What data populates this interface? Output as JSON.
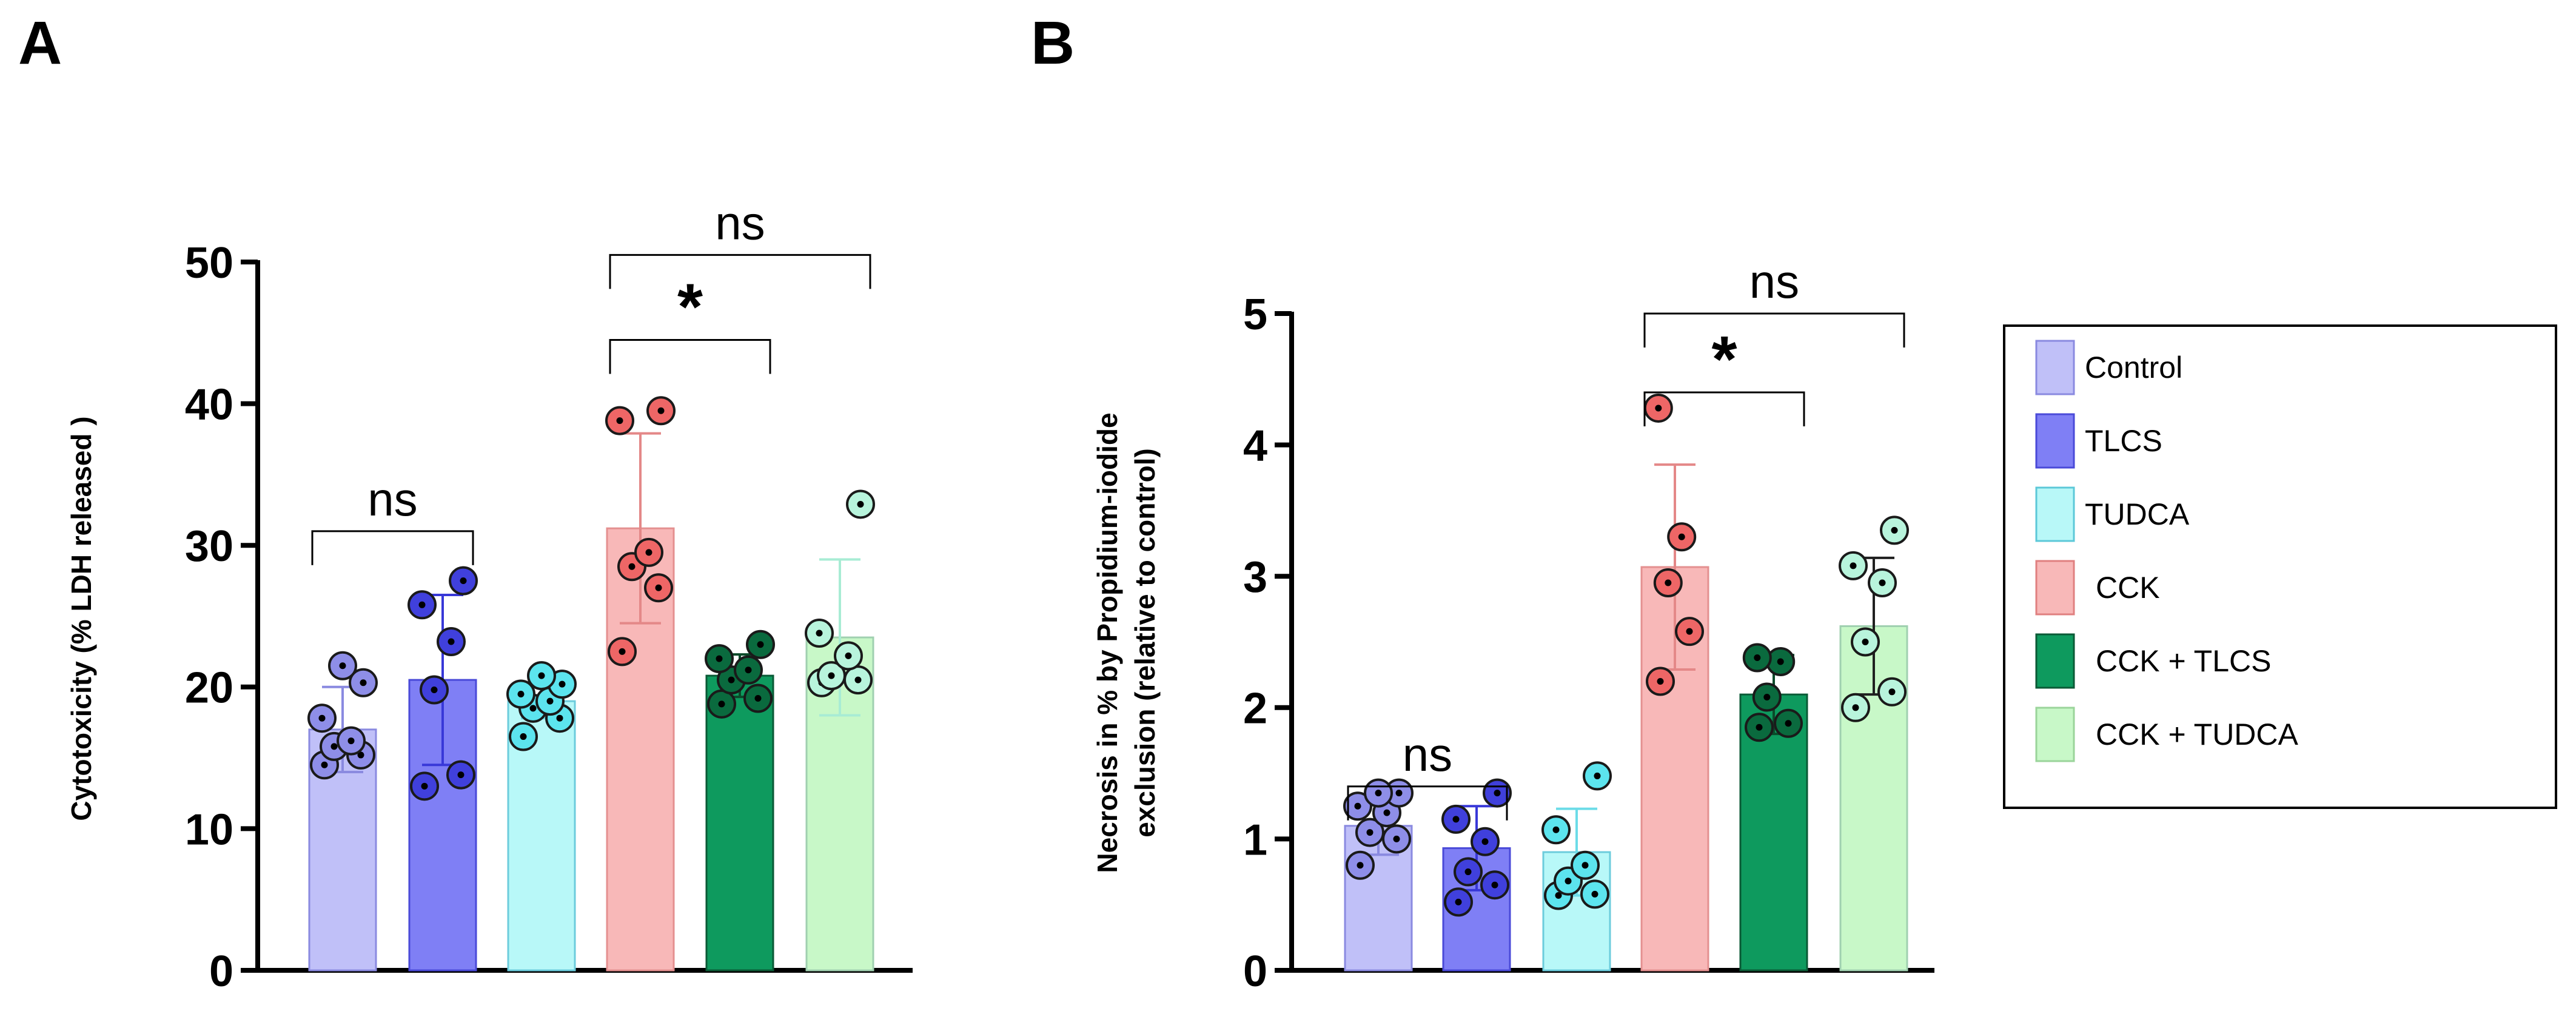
{
  "panels": {
    "a": "A",
    "b": "B"
  },
  "legend": {
    "items": [
      {
        "label": "Control",
        "color": "#C0C0F8",
        "edge": "#8A8AE0"
      },
      {
        "label": "TLCS",
        "color": "#7F7FF5",
        "edge": "#4A4AD8"
      },
      {
        "label": "TUDCA",
        "color": "#B8F8F8",
        "edge": "#5CC8D8"
      },
      {
        "label": "CCK",
        "color": "#F8B8B8",
        "edge": "#E08080"
      },
      {
        "label": "CCK + TLCS",
        "color": "#0E9A5E",
        "edge": "#0A5A36"
      },
      {
        "label": "CCK + TUDCA",
        "color": "#C8F8C8",
        "edge": "#9AD49A"
      }
    ]
  },
  "chart_data": [
    {
      "type": "bar",
      "panel": "A",
      "ylabel": "Cytotoxicity (% LDH released )",
      "ylim": [
        0,
        50
      ],
      "yticks": [
        0,
        10,
        20,
        30,
        40,
        50
      ],
      "categories": [
        "Control",
        "TLCS",
        "TUDCA",
        "CCK",
        "CCK + TLCS",
        "CCK + TUDCA"
      ],
      "bar_colors": [
        "#C0C0F8",
        "#7F7FF5",
        "#B8F8F8",
        "#F8B8B8",
        "#0E9A5E",
        "#C8F8C8"
      ],
      "bar_edges": [
        "#8A8AE0",
        "#4A4AD8",
        "#6CCCDC",
        "#E49090",
        "#0A5A36",
        "#A0D0B0"
      ],
      "point_colors": [
        "#8E8EE8",
        "#4040DC",
        "#5CE4EE",
        "#EE6666",
        "#0A6A3E",
        "#B8F4DC"
      ],
      "error_colors": [
        "#8A8AE0",
        "#3838D8",
        "#6CDCE8",
        "#E48888",
        "#0A4A2A",
        "#A8ECD4"
      ],
      "values": [
        17,
        20.5,
        19,
        31.2,
        20.8,
        23.5
      ],
      "error": [
        3,
        6,
        1.2,
        6.7,
        1.5,
        5.5
      ],
      "points": [
        [
          14.5,
          15.2,
          15.8,
          16.2,
          17.8,
          20.3,
          21.5
        ],
        [
          13.0,
          13.8,
          19.8,
          23.2,
          25.8,
          27.5
        ],
        [
          16.5,
          17.8,
          18.5,
          19.0,
          19.5,
          20.2,
          20.8
        ],
        [
          22.5,
          27.0,
          28.5,
          29.5,
          38.8,
          39.5
        ],
        [
          18.8,
          19.2,
          20.5,
          21.2,
          22.0,
          23.0
        ],
        [
          20.3,
          20.5,
          20.8,
          22.2,
          23.8,
          32.9
        ]
      ],
      "annotations": [
        {
          "text": "ns",
          "from": 0,
          "to": 1,
          "y": 31
        },
        {
          "text": "*",
          "from": 3,
          "to": 4,
          "y": 44.5
        },
        {
          "text": "ns",
          "from": 3,
          "to": 5,
          "y": 50.5
        }
      ]
    },
    {
      "type": "bar",
      "panel": "B",
      "ylabel": "Necrosis in % by Propidium-iodide exclusion (relative to control)",
      "ylabel_lines": [
        "Necrosis in % by Propidium-iodide",
        "exclusion (relative to control)"
      ],
      "ylim": [
        0,
        5
      ],
      "yticks": [
        0,
        1,
        2,
        3,
        4,
        5
      ],
      "categories": [
        "Control",
        "TLCS",
        "TUDCA",
        "CCK",
        "CCK + TLCS",
        "CCK + TUDCA"
      ],
      "bar_colors": [
        "#C0C0F8",
        "#7F7FF5",
        "#B8F8F8",
        "#F8B8B8",
        "#0E9A5E",
        "#C8F8C8"
      ],
      "bar_edges": [
        "#8A8AE0",
        "#4A4AD8",
        "#6CCCDC",
        "#E49090",
        "#0A5A36",
        "#A0D0B0"
      ],
      "point_colors": [
        "#8E8EE8",
        "#4040DC",
        "#5CE4EE",
        "#EE6666",
        "#0A6A3E",
        "#B8F4DC"
      ],
      "error_colors": [
        "#8A8AE0",
        "#3838D8",
        "#6CDCE8",
        "#E48888",
        "#0A4A2A",
        "#202020"
      ],
      "values": [
        1.1,
        0.93,
        0.9,
        3.07,
        2.1,
        2.62
      ],
      "error": [
        0.22,
        0.32,
        0.33,
        0.78,
        0.3,
        0.52
      ],
      "points": [
        [
          0.8,
          1.0,
          1.05,
          1.2,
          1.25,
          1.35,
          1.35
        ],
        [
          0.52,
          0.65,
          0.75,
          0.98,
          1.15,
          1.35
        ],
        [
          0.57,
          0.58,
          0.68,
          0.8,
          1.07,
          1.48
        ],
        [
          2.2,
          2.58,
          2.95,
          3.3,
          4.28
        ],
        [
          1.85,
          1.88,
          2.08,
          2.35,
          2.38
        ],
        [
          2.0,
          2.12,
          2.5,
          2.95,
          3.08,
          3.35
        ]
      ],
      "annotations": [
        {
          "text": "ns",
          "from": 0,
          "to": 1,
          "y": 1.4
        },
        {
          "text": "*",
          "from": 3,
          "to": 4,
          "y": 4.4
        },
        {
          "text": "ns",
          "from": 3,
          "to": 5,
          "y": 5.0
        }
      ]
    }
  ]
}
